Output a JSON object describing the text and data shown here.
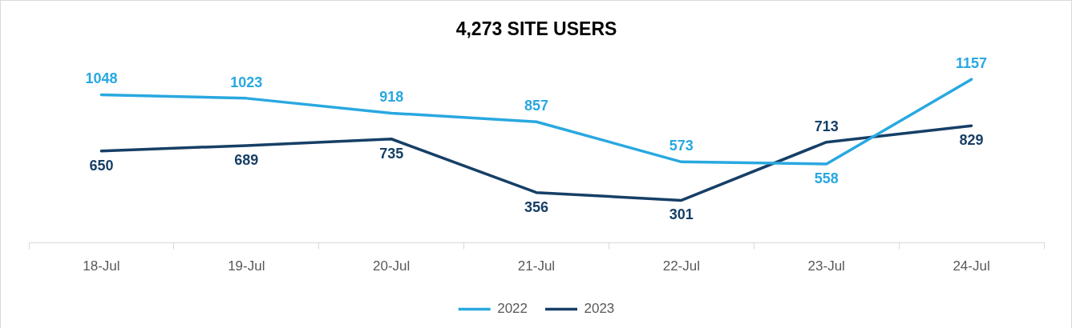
{
  "chart_data": {
    "type": "line",
    "title": "4,273 SITE USERS",
    "categories": [
      "18-Jul",
      "19-Jul",
      "20-Jul",
      "21-Jul",
      "22-Jul",
      "23-Jul",
      "24-Jul"
    ],
    "series": [
      {
        "name": "2022",
        "color": "#29a8e0",
        "values": [
          1048,
          1023,
          918,
          857,
          573,
          558,
          1157
        ]
      },
      {
        "name": "2023",
        "color": "#163f66",
        "values": [
          650,
          689,
          735,
          356,
          301,
          713,
          829
        ]
      }
    ],
    "data_labels": true,
    "legend": "bottom",
    "grid": false,
    "line_style": "solid"
  }
}
